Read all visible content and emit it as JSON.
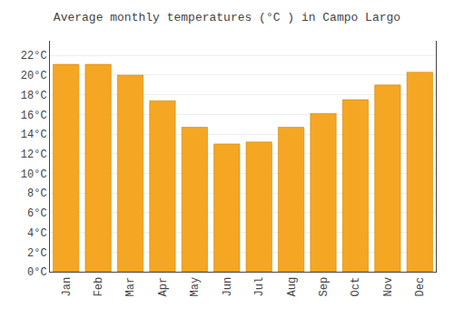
{
  "chart_data": {
    "type": "bar",
    "title": "Average monthly temperatures (°C ) in Campo Largo",
    "categories": [
      "Jan",
      "Feb",
      "Mar",
      "Apr",
      "May",
      "Jun",
      "Jul",
      "Aug",
      "Sep",
      "Oct",
      "Nov",
      "Dec"
    ],
    "values": [
      21.1,
      21.1,
      20.0,
      17.4,
      14.7,
      13.0,
      13.2,
      14.7,
      16.1,
      17.5,
      19.0,
      20.3
    ],
    "color": "#F5A623",
    "ylim": [
      0,
      23.5
    ],
    "yticks": [
      {
        "value": 0,
        "label": "0°C"
      },
      {
        "value": 2,
        "label": "2°C"
      },
      {
        "value": 4,
        "label": "4°C"
      },
      {
        "value": 6,
        "label": "6°C"
      },
      {
        "value": 8,
        "label": "8°C"
      },
      {
        "value": 10,
        "label": "10°C"
      },
      {
        "value": 12,
        "label": "12°C"
      },
      {
        "value": 14,
        "label": "14°C"
      },
      {
        "value": 16,
        "label": "16°C"
      },
      {
        "value": 18,
        "label": "18°C"
      },
      {
        "value": 20,
        "label": "20°C"
      },
      {
        "value": 22,
        "label": "22°C"
      }
    ],
    "grid": true
  }
}
